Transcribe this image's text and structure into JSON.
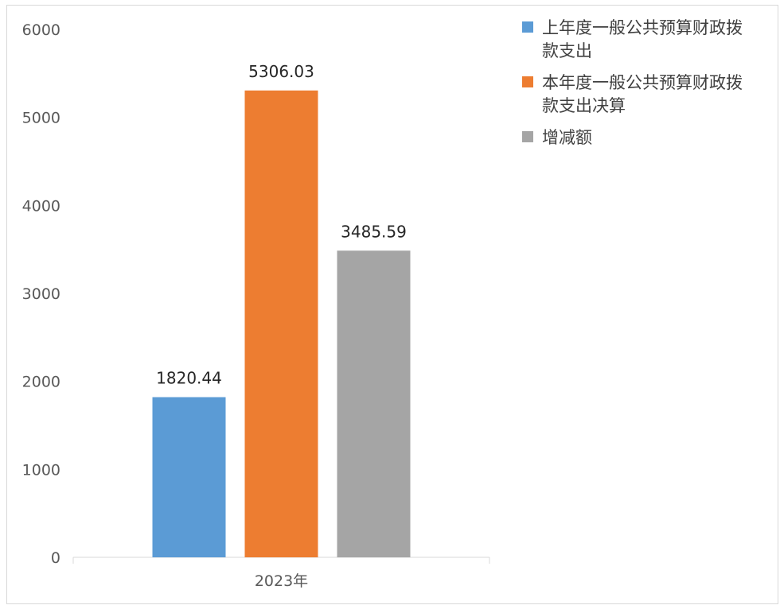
{
  "chart_data": {
    "type": "bar",
    "title": "",
    "xlabel": "",
    "ylabel": "",
    "categories": [
      "2023年"
    ],
    "ylim": [
      0,
      6000
    ],
    "yticks": [
      0,
      1000,
      2000,
      3000,
      4000,
      5000,
      6000
    ],
    "grid": false,
    "legend_position": "top-right",
    "series": [
      {
        "name_lines": [
          "上年度一般公共预算财政拨",
          "款支出"
        ],
        "values": [
          1820.44
        ],
        "labels": [
          "1820.44"
        ],
        "color": "#5b9bd5"
      },
      {
        "name_lines": [
          "本年度一般公共预算财政拨",
          "款支出决算"
        ],
        "values": [
          5306.03
        ],
        "labels": [
          "5306.03"
        ],
        "color": "#ed7d31"
      },
      {
        "name_lines": [
          "增减额"
        ],
        "values": [
          3485.59
        ],
        "labels": [
          "3485.59"
        ],
        "color": "#a5a5a5"
      }
    ]
  }
}
